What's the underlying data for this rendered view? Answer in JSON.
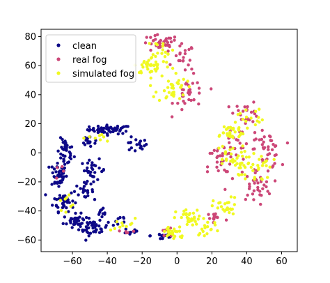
{
  "chart_data": {
    "type": "scatter",
    "title": "",
    "xlabel": "",
    "ylabel": "",
    "xlim": [
      -78,
      69
    ],
    "ylim": [
      -68,
      85
    ],
    "xticks": [
      -60,
      -40,
      -20,
      0,
      20,
      40,
      60
    ],
    "yticks": [
      80,
      60,
      40,
      20,
      0,
      -20,
      -40,
      -60
    ],
    "xtick_labels": [
      "−60",
      "−40",
      "−20",
      "0",
      "20",
      "40",
      "60"
    ],
    "ytick_labels": [
      "80",
      "60",
      "40",
      "20",
      "0",
      "−20",
      "−40",
      "−60"
    ],
    "grid": false,
    "legend_position": "top-left",
    "series": [
      {
        "name": "clean",
        "color": "#0d0887",
        "clusters": [
          {
            "cx": -38,
            "cy": 16,
            "sx": 10,
            "sy": 2.5,
            "n": 55
          },
          {
            "cx": -24,
            "cy": 5,
            "sx": 6,
            "sy": 4,
            "n": 18
          },
          {
            "cx": -64,
            "cy": 0,
            "sx": 4,
            "sy": 8,
            "n": 35
          },
          {
            "cx": -68,
            "cy": -15,
            "sx": 4,
            "sy": 8,
            "n": 45
          },
          {
            "cx": -65,
            "cy": -33,
            "sx": 5,
            "sy": 6,
            "n": 40
          },
          {
            "cx": -58,
            "cy": -47,
            "sx": 6,
            "sy": 4,
            "n": 40
          },
          {
            "cx": -48,
            "cy": -52,
            "sx": 7,
            "sy": 4,
            "n": 35
          },
          {
            "cx": -48,
            "cy": -12,
            "sx": 6,
            "sy": 6,
            "n": 30
          },
          {
            "cx": -54,
            "cy": -26,
            "sx": 5,
            "sy": 4,
            "n": 20
          },
          {
            "cx": -43,
            "cy": -44,
            "sx": 4,
            "sy": 5,
            "n": 12
          },
          {
            "cx": -33,
            "cy": -47,
            "sx": 4,
            "sy": 4,
            "n": 8
          },
          {
            "cx": -26,
            "cy": -54,
            "sx": 4,
            "sy": 3,
            "n": 10
          },
          {
            "cx": -8,
            "cy": -57,
            "sx": 6,
            "sy": 3,
            "n": 14
          },
          {
            "cx": -50,
            "cy": 8,
            "sx": 5,
            "sy": 4,
            "n": 15
          }
        ]
      },
      {
        "name": "real fog",
        "color": "#cc4778",
        "clusters": [
          {
            "cx": -10,
            "cy": 75,
            "sx": 9,
            "sy": 5,
            "n": 35
          },
          {
            "cx": 4,
            "cy": 65,
            "sx": 5,
            "sy": 8,
            "n": 20
          },
          {
            "cx": 8,
            "cy": 40,
            "sx": 8,
            "sy": 10,
            "n": 30
          },
          {
            "cx": 40,
            "cy": 28,
            "sx": 6,
            "sy": 6,
            "n": 22
          },
          {
            "cx": 35,
            "cy": 6,
            "sx": 12,
            "sy": 10,
            "n": 30
          },
          {
            "cx": 52,
            "cy": 2,
            "sx": 6,
            "sy": 10,
            "n": 35
          },
          {
            "cx": 45,
            "cy": -22,
            "sx": 8,
            "sy": 10,
            "n": 35
          },
          {
            "cx": 25,
            "cy": -10,
            "sx": 6,
            "sy": 14,
            "n": 22
          },
          {
            "cx": 22,
            "cy": -45,
            "sx": 6,
            "sy": 5,
            "n": 15
          },
          {
            "cx": -30,
            "cy": -54,
            "sx": 5,
            "sy": 3,
            "n": 5
          },
          {
            "cx": -5,
            "cy": -55,
            "sx": 5,
            "sy": 4,
            "n": 8
          },
          {
            "cx": -65,
            "cy": -14,
            "sx": 4,
            "sy": 6,
            "n": 4
          }
        ]
      },
      {
        "name": "simulated fog",
        "color": "#f0f921",
        "clusters": [
          {
            "cx": -14,
            "cy": 60,
            "sx": 9,
            "sy": 5,
            "n": 40
          },
          {
            "cx": -3,
            "cy": 45,
            "sx": 7,
            "sy": 9,
            "n": 35
          },
          {
            "cx": -8,
            "cy": 72,
            "sx": 5,
            "sy": 5,
            "n": 15
          },
          {
            "cx": 30,
            "cy": 14,
            "sx": 9,
            "sy": 5,
            "n": 30
          },
          {
            "cx": 30,
            "cy": -5,
            "sx": 8,
            "sy": 9,
            "n": 30
          },
          {
            "cx": 45,
            "cy": -10,
            "sx": 8,
            "sy": 9,
            "n": 30
          },
          {
            "cx": 42,
            "cy": 25,
            "sx": 6,
            "sy": 6,
            "n": 15
          },
          {
            "cx": 28,
            "cy": -38,
            "sx": 6,
            "sy": 6,
            "n": 25
          },
          {
            "cx": 8,
            "cy": -45,
            "sx": 7,
            "sy": 5,
            "n": 30
          },
          {
            "cx": -2,
            "cy": -55,
            "sx": 6,
            "sy": 4,
            "n": 25
          },
          {
            "cx": -30,
            "cy": -50,
            "sx": 6,
            "sy": 4,
            "n": 10
          },
          {
            "cx": -65,
            "cy": -33,
            "sx": 4,
            "sy": 5,
            "n": 8
          },
          {
            "cx": -45,
            "cy": 10,
            "sx": 8,
            "sy": 3,
            "n": 8
          },
          {
            "cx": 18,
            "cy": -52,
            "sx": 6,
            "sy": 4,
            "n": 15
          }
        ]
      }
    ]
  }
}
